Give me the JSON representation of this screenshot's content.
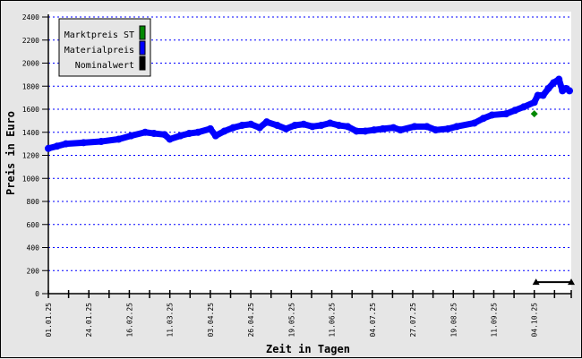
{
  "chart_data": {
    "type": "line",
    "title": "",
    "xlabel": "Zeit in Tagen",
    "ylabel": "Preis in Euro",
    "ylim": [
      0,
      2400
    ],
    "yticks": [
      0,
      200,
      400,
      600,
      800,
      1000,
      1200,
      1400,
      1600,
      1800,
      2000,
      2200,
      2400
    ],
    "xlim": [
      "2025-01-01",
      "2025-10-25"
    ],
    "xtick_labels": [
      "01.01.25",
      "24.01.25",
      "16.02.25",
      "11.03.25",
      "03.04.25",
      "26.04.25",
      "19.05.25",
      "11.06.25",
      "04.07.25",
      "27.07.25",
      "19.08.25",
      "11.09.25",
      "04.10.25"
    ],
    "grid": "horizontal dotted",
    "legend_position": "top-left",
    "series": [
      {
        "name": "Marktpreis ST",
        "color": "#008800",
        "x": [
          "2025-10-04"
        ],
        "y": [
          1560
        ]
      },
      {
        "name": "Materialpreis",
        "color": "#0000ff",
        "x": [
          "2025-01-01",
          "2025-01-06",
          "2025-01-11",
          "2025-01-21",
          "2025-01-31",
          "2025-02-10",
          "2025-02-17",
          "2025-02-25",
          "2025-03-02",
          "2025-03-08",
          "2025-03-11",
          "2025-03-17",
          "2025-03-22",
          "2025-03-27",
          "2025-04-03",
          "2025-04-06",
          "2025-04-11",
          "2025-04-16",
          "2025-04-21",
          "2025-04-26",
          "2025-05-01",
          "2025-05-05",
          "2025-05-11",
          "2025-05-16",
          "2025-05-21",
          "2025-05-26",
          "2025-05-31",
          "2025-06-05",
          "2025-06-10",
          "2025-06-15",
          "2025-06-20",
          "2025-06-25",
          "2025-06-30",
          "2025-07-05",
          "2025-07-10",
          "2025-07-16",
          "2025-07-20",
          "2025-07-28",
          "2025-08-04",
          "2025-08-09",
          "2025-08-16",
          "2025-08-21",
          "2025-08-31",
          "2025-09-05",
          "2025-09-10",
          "2025-09-18",
          "2025-09-23",
          "2025-09-28",
          "2025-10-04",
          "2025-10-06",
          "2025-10-09",
          "2025-10-12",
          "2025-10-15",
          "2025-10-18",
          "2025-10-20",
          "2025-10-22",
          "2025-10-24"
        ],
        "y": [
          1260,
          1280,
          1300,
          1310,
          1320,
          1340,
          1370,
          1400,
          1390,
          1380,
          1340,
          1370,
          1390,
          1400,
          1430,
          1370,
          1410,
          1440,
          1460,
          1470,
          1440,
          1490,
          1460,
          1430,
          1460,
          1470,
          1450,
          1460,
          1480,
          1460,
          1450,
          1410,
          1410,
          1420,
          1430,
          1440,
          1420,
          1450,
          1450,
          1420,
          1430,
          1450,
          1480,
          1520,
          1550,
          1560,
          1590,
          1620,
          1660,
          1720,
          1720,
          1780,
          1830,
          1860,
          1760,
          1780,
          1760
        ]
      },
      {
        "name": "Nominalwert",
        "color": "#000000",
        "x": [
          "2025-10-05",
          "2025-10-25"
        ],
        "y": [
          100,
          100
        ]
      }
    ]
  }
}
